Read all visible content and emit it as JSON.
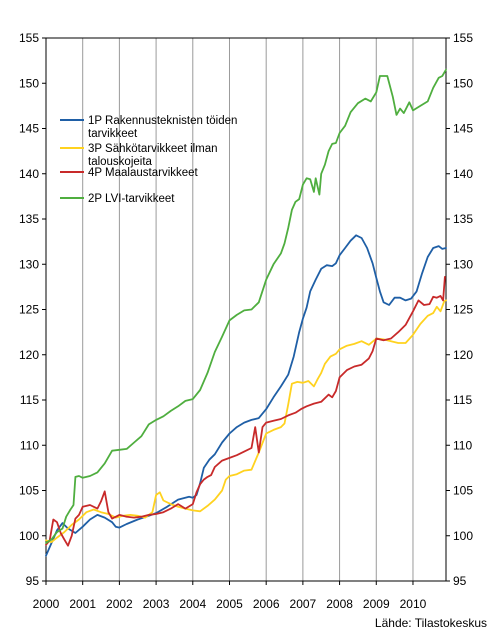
{
  "chart_data": {
    "type": "line",
    "source": "Lähde: Tilastokeskus",
    "ylim": [
      95,
      155
    ],
    "y_ticks": [
      95,
      100,
      105,
      110,
      115,
      120,
      125,
      130,
      135,
      140,
      145,
      150,
      155
    ],
    "x_range": [
      2000.0,
      2010.9
    ],
    "x_ticks": [
      "2000",
      "2001",
      "2002",
      "2003",
      "2004",
      "2005",
      "2006",
      "2007",
      "2008",
      "2009",
      "2010"
    ],
    "grid": "vertical-at-years",
    "legend_placement": "upper-left",
    "series": [
      {
        "name": "1P Rakennusteknisten töiden tarvikkeet",
        "legend_lines": [
          "1P Rakennusteknisten töiden",
          "tarvikkeet"
        ],
        "color": "#1f5fa6",
        "points": [
          [
            2000.0,
            97.8
          ],
          [
            2000.15,
            99.2
          ],
          [
            2000.3,
            100.6
          ],
          [
            2000.45,
            101.4
          ],
          [
            2000.6,
            100.8
          ],
          [
            2000.8,
            100.3
          ],
          [
            2001.0,
            101.0
          ],
          [
            2001.2,
            101.8
          ],
          [
            2001.4,
            102.3
          ],
          [
            2001.6,
            102.0
          ],
          [
            2001.8,
            101.5
          ],
          [
            2001.9,
            101.0
          ],
          [
            2002.0,
            100.9
          ],
          [
            2002.2,
            101.3
          ],
          [
            2002.5,
            101.8
          ],
          [
            2002.8,
            102.2
          ],
          [
            2003.0,
            102.5
          ],
          [
            2003.3,
            103.2
          ],
          [
            2003.6,
            104.0
          ],
          [
            2003.9,
            104.3
          ],
          [
            2004.0,
            104.2
          ],
          [
            2004.1,
            104.5
          ],
          [
            2004.2,
            105.8
          ],
          [
            2004.3,
            107.5
          ],
          [
            2004.45,
            108.4
          ],
          [
            2004.6,
            109.0
          ],
          [
            2004.8,
            110.3
          ],
          [
            2005.0,
            111.3
          ],
          [
            2005.2,
            112.0
          ],
          [
            2005.4,
            112.5
          ],
          [
            2005.6,
            112.8
          ],
          [
            2005.8,
            113.0
          ],
          [
            2006.0,
            114.0
          ],
          [
            2006.2,
            115.3
          ],
          [
            2006.4,
            116.5
          ],
          [
            2006.6,
            117.8
          ],
          [
            2006.75,
            119.8
          ],
          [
            2006.9,
            122.5
          ],
          [
            2007.0,
            124.0
          ],
          [
            2007.1,
            125.2
          ],
          [
            2007.2,
            127.0
          ],
          [
            2007.35,
            128.3
          ],
          [
            2007.5,
            129.5
          ],
          [
            2007.65,
            129.9
          ],
          [
            2007.8,
            129.8
          ],
          [
            2007.9,
            130.1
          ],
          [
            2008.0,
            131.0
          ],
          [
            2008.15,
            131.8
          ],
          [
            2008.3,
            132.6
          ],
          [
            2008.45,
            133.2
          ],
          [
            2008.6,
            132.9
          ],
          [
            2008.75,
            131.8
          ],
          [
            2008.9,
            130.1
          ],
          [
            2009.0,
            128.5
          ],
          [
            2009.1,
            127.0
          ],
          [
            2009.2,
            125.8
          ],
          [
            2009.35,
            125.5
          ],
          [
            2009.5,
            126.3
          ],
          [
            2009.65,
            126.3
          ],
          [
            2009.8,
            126.0
          ],
          [
            2009.95,
            126.2
          ],
          [
            2010.1,
            127.0
          ],
          [
            2010.25,
            129.0
          ],
          [
            2010.4,
            130.8
          ],
          [
            2010.55,
            131.8
          ],
          [
            2010.7,
            132.0
          ],
          [
            2010.8,
            131.7
          ],
          [
            2010.9,
            131.8
          ]
        ]
      },
      {
        "name": "3P Sähkötarvikkeet ilman talouskojeita",
        "legend_lines": [
          "3P Sähkötarvikkeet ilman",
          "talouskojeita"
        ],
        "color": "#ffd21f",
        "points": [
          [
            2000.0,
            99.5
          ],
          [
            2000.15,
            99.3
          ],
          [
            2000.3,
            99.8
          ],
          [
            2000.5,
            100.4
          ],
          [
            2000.7,
            101.2
          ],
          [
            2000.9,
            101.8
          ],
          [
            2001.1,
            102.6
          ],
          [
            2001.3,
            102.9
          ],
          [
            2001.5,
            102.6
          ],
          [
            2001.7,
            102.4
          ],
          [
            2001.9,
            102.0
          ],
          [
            2002.1,
            102.2
          ],
          [
            2002.3,
            102.3
          ],
          [
            2002.5,
            102.2
          ],
          [
            2002.7,
            102.0
          ],
          [
            2002.9,
            102.6
          ],
          [
            2003.0,
            104.5
          ],
          [
            2003.1,
            104.8
          ],
          [
            2003.2,
            103.9
          ],
          [
            2003.4,
            103.5
          ],
          [
            2003.6,
            103.2
          ],
          [
            2003.8,
            103.0
          ],
          [
            2004.0,
            102.8
          ],
          [
            2004.2,
            102.7
          ],
          [
            2004.4,
            103.3
          ],
          [
            2004.6,
            104.0
          ],
          [
            2004.8,
            105.0
          ],
          [
            2004.9,
            106.2
          ],
          [
            2005.0,
            106.6
          ],
          [
            2005.2,
            106.8
          ],
          [
            2005.4,
            107.2
          ],
          [
            2005.6,
            107.3
          ],
          [
            2005.8,
            109.2
          ],
          [
            2006.0,
            111.3
          ],
          [
            2006.2,
            111.7
          ],
          [
            2006.4,
            112.0
          ],
          [
            2006.5,
            112.4
          ],
          [
            2006.6,
            114.5
          ],
          [
            2006.7,
            116.8
          ],
          [
            2006.85,
            117.0
          ],
          [
            2007.0,
            116.9
          ],
          [
            2007.15,
            117.1
          ],
          [
            2007.3,
            116.5
          ],
          [
            2007.4,
            117.3
          ],
          [
            2007.5,
            118.0
          ],
          [
            2007.6,
            119.0
          ],
          [
            2007.75,
            119.8
          ],
          [
            2007.9,
            120.1
          ],
          [
            2008.0,
            120.6
          ],
          [
            2008.2,
            121.0
          ],
          [
            2008.4,
            121.2
          ],
          [
            2008.6,
            121.5
          ],
          [
            2008.8,
            121.1
          ],
          [
            2009.0,
            121.8
          ],
          [
            2009.2,
            121.7
          ],
          [
            2009.4,
            121.5
          ],
          [
            2009.6,
            121.3
          ],
          [
            2009.8,
            121.3
          ],
          [
            2010.0,
            122.2
          ],
          [
            2010.2,
            123.4
          ],
          [
            2010.4,
            124.3
          ],
          [
            2010.55,
            124.6
          ],
          [
            2010.65,
            125.3
          ],
          [
            2010.75,
            124.8
          ],
          [
            2010.85,
            125.9
          ],
          [
            2010.9,
            126.0
          ]
        ]
      },
      {
        "name": "4P Maalaustarvikkeet",
        "legend_lines": [
          "4P Maalaustarvikkeet"
        ],
        "color": "#c82a2a",
        "points": [
          [
            2000.0,
            99.0
          ],
          [
            2000.1,
            99.5
          ],
          [
            2000.2,
            101.8
          ],
          [
            2000.3,
            101.5
          ],
          [
            2000.4,
            100.3
          ],
          [
            2000.5,
            99.6
          ],
          [
            2000.6,
            98.9
          ],
          [
            2000.7,
            100.0
          ],
          [
            2000.8,
            101.9
          ],
          [
            2000.9,
            102.3
          ],
          [
            2001.0,
            103.2
          ],
          [
            2001.2,
            103.4
          ],
          [
            2001.4,
            103.0
          ],
          [
            2001.5,
            103.8
          ],
          [
            2001.6,
            104.9
          ],
          [
            2001.7,
            102.6
          ],
          [
            2001.8,
            101.9
          ],
          [
            2002.0,
            102.3
          ],
          [
            2002.2,
            102.1
          ],
          [
            2002.4,
            102.0
          ],
          [
            2002.6,
            102.1
          ],
          [
            2002.8,
            102.3
          ],
          [
            2003.0,
            102.4
          ],
          [
            2003.2,
            102.6
          ],
          [
            2003.4,
            103.0
          ],
          [
            2003.6,
            103.5
          ],
          [
            2003.8,
            103.0
          ],
          [
            2004.0,
            103.5
          ],
          [
            2004.1,
            104.8
          ],
          [
            2004.2,
            105.7
          ],
          [
            2004.3,
            106.2
          ],
          [
            2004.4,
            106.5
          ],
          [
            2004.5,
            106.7
          ],
          [
            2004.6,
            107.6
          ],
          [
            2004.8,
            108.3
          ],
          [
            2005.0,
            108.6
          ],
          [
            2005.2,
            108.9
          ],
          [
            2005.4,
            109.3
          ],
          [
            2005.6,
            109.7
          ],
          [
            2005.7,
            112.0
          ],
          [
            2005.8,
            109.2
          ],
          [
            2005.9,
            112.0
          ],
          [
            2006.0,
            112.5
          ],
          [
            2006.2,
            112.7
          ],
          [
            2006.4,
            112.9
          ],
          [
            2006.6,
            113.3
          ],
          [
            2006.8,
            113.6
          ],
          [
            2006.95,
            114.0
          ],
          [
            2007.1,
            114.3
          ],
          [
            2007.3,
            114.6
          ],
          [
            2007.5,
            114.8
          ],
          [
            2007.7,
            115.6
          ],
          [
            2007.8,
            115.3
          ],
          [
            2007.9,
            116.0
          ],
          [
            2008.0,
            117.5
          ],
          [
            2008.2,
            118.3
          ],
          [
            2008.4,
            118.7
          ],
          [
            2008.6,
            118.9
          ],
          [
            2008.8,
            119.6
          ],
          [
            2008.9,
            120.4
          ],
          [
            2009.0,
            121.8
          ],
          [
            2009.2,
            121.6
          ],
          [
            2009.4,
            121.8
          ],
          [
            2009.6,
            122.5
          ],
          [
            2009.8,
            123.3
          ],
          [
            2010.0,
            124.8
          ],
          [
            2010.15,
            126.0
          ],
          [
            2010.3,
            125.5
          ],
          [
            2010.45,
            125.6
          ],
          [
            2010.55,
            126.4
          ],
          [
            2010.65,
            126.3
          ],
          [
            2010.75,
            126.5
          ],
          [
            2010.82,
            126.0
          ],
          [
            2010.87,
            128.6
          ]
        ]
      },
      {
        "name": "2P LVI-tarvikkeet",
        "legend_lines": [
          "2P LVI-tarvikkeet"
        ],
        "color": "#4fae3f",
        "points": [
          [
            2000.0,
            99.2
          ],
          [
            2000.15,
            99.6
          ],
          [
            2000.3,
            100.4
          ],
          [
            2000.45,
            100.8
          ],
          [
            2000.55,
            102.1
          ],
          [
            2000.65,
            102.8
          ],
          [
            2000.75,
            103.4
          ],
          [
            2000.8,
            106.5
          ],
          [
            2000.9,
            106.6
          ],
          [
            2001.0,
            106.4
          ],
          [
            2001.2,
            106.6
          ],
          [
            2001.4,
            107.0
          ],
          [
            2001.6,
            108.0
          ],
          [
            2001.8,
            109.4
          ],
          [
            2002.0,
            109.5
          ],
          [
            2002.2,
            109.6
          ],
          [
            2002.4,
            110.3
          ],
          [
            2002.6,
            111.0
          ],
          [
            2002.8,
            112.3
          ],
          [
            2003.0,
            112.8
          ],
          [
            2003.2,
            113.2
          ],
          [
            2003.4,
            113.8
          ],
          [
            2003.6,
            114.3
          ],
          [
            2003.8,
            114.9
          ],
          [
            2004.0,
            115.1
          ],
          [
            2004.2,
            116.1
          ],
          [
            2004.4,
            118.0
          ],
          [
            2004.6,
            120.3
          ],
          [
            2004.8,
            122.0
          ],
          [
            2005.0,
            123.8
          ],
          [
            2005.2,
            124.4
          ],
          [
            2005.4,
            124.9
          ],
          [
            2005.6,
            125.0
          ],
          [
            2005.8,
            125.8
          ],
          [
            2006.0,
            128.3
          ],
          [
            2006.2,
            130.0
          ],
          [
            2006.4,
            131.2
          ],
          [
            2006.5,
            132.3
          ],
          [
            2006.6,
            134.0
          ],
          [
            2006.7,
            136.0
          ],
          [
            2006.8,
            136.9
          ],
          [
            2006.9,
            137.2
          ],
          [
            2007.0,
            138.8
          ],
          [
            2007.1,
            139.5
          ],
          [
            2007.2,
            139.4
          ],
          [
            2007.3,
            138.0
          ],
          [
            2007.35,
            139.5
          ],
          [
            2007.45,
            137.7
          ],
          [
            2007.5,
            140.0
          ],
          [
            2007.6,
            141.0
          ],
          [
            2007.7,
            142.5
          ],
          [
            2007.8,
            143.3
          ],
          [
            2007.9,
            143.4
          ],
          [
            2008.0,
            144.5
          ],
          [
            2008.15,
            145.3
          ],
          [
            2008.3,
            146.8
          ],
          [
            2008.5,
            147.8
          ],
          [
            2008.7,
            148.3
          ],
          [
            2008.85,
            148.0
          ],
          [
            2009.0,
            149.0
          ],
          [
            2009.1,
            150.8
          ],
          [
            2009.3,
            150.8
          ],
          [
            2009.45,
            148.5
          ],
          [
            2009.55,
            146.5
          ],
          [
            2009.65,
            147.2
          ],
          [
            2009.75,
            146.7
          ],
          [
            2009.9,
            147.9
          ],
          [
            2010.0,
            147.0
          ],
          [
            2010.2,
            147.5
          ],
          [
            2010.4,
            148.0
          ],
          [
            2010.55,
            149.5
          ],
          [
            2010.7,
            150.6
          ],
          [
            2010.8,
            150.8
          ],
          [
            2010.9,
            151.5
          ]
        ]
      }
    ]
  }
}
